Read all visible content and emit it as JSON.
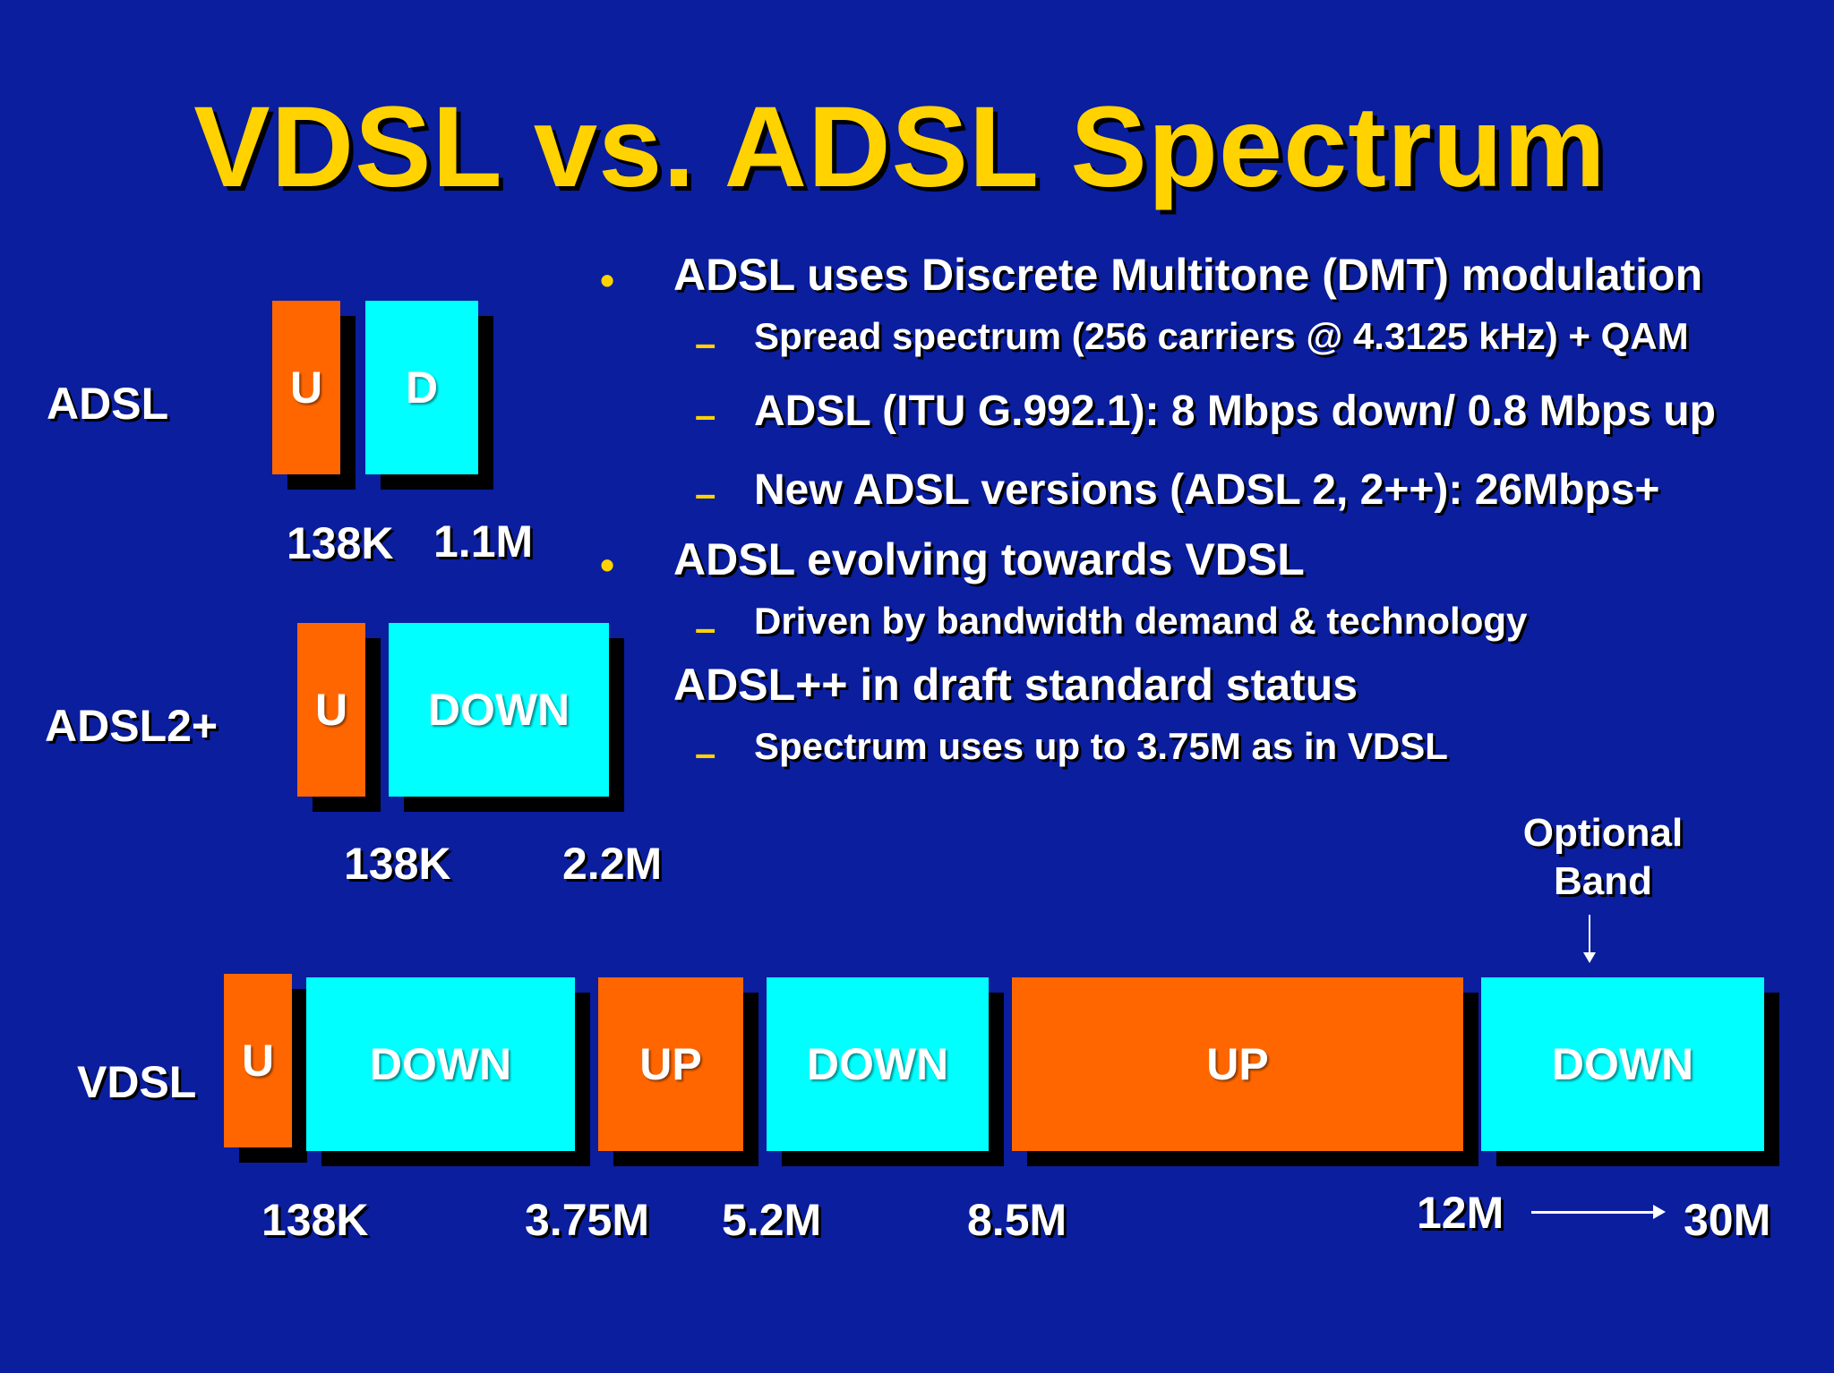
{
  "title": "VDSL vs. ADSL Spectrum",
  "colors": {
    "background": "#0a1e9e",
    "title": "#ffd200",
    "upstream": "#ff6600",
    "downstream": "#00ffff"
  },
  "bullets": [
    {
      "text": "ADSL uses Discrete Multitone (DMT) modulation",
      "marker": "•",
      "subs": [
        "Spread spectrum (256 carriers @ 4.3125 kHz) + QAM",
        "ADSL (ITU G.992.1): 8 Mbps down/ 0.8 Mbps up",
        "New ADSL versions (ADSL 2, 2++): 26Mbps+"
      ]
    },
    {
      "text": "ADSL evolving towards VDSL",
      "marker": "•",
      "subs": [
        "Driven by bandwidth demand & technology"
      ]
    },
    {
      "text": "ADSL++ in draft standard status",
      "marker": "",
      "subs": [
        "Spectrum uses up to 3.75M as in VDSL"
      ]
    }
  ],
  "dash": "–",
  "rows": {
    "adsl": {
      "label": "ADSL",
      "bands": [
        "U",
        "D"
      ],
      "freqs": [
        "138K",
        "1.1M"
      ]
    },
    "adsl2": {
      "label": "ADSL2+",
      "bands": [
        "U",
        "DOWN"
      ],
      "freqs": [
        "138K",
        "2.2M"
      ]
    },
    "vdsl": {
      "label": "VDSL",
      "bands": [
        "U",
        "DOWN",
        "UP",
        "DOWN",
        "UP",
        "DOWN"
      ],
      "freqs": [
        "138K",
        "3.75M",
        "5.2M",
        "8.5M",
        "12M",
        "30M"
      ]
    }
  },
  "optional_band": {
    "line1": "Optional",
    "line2": "Band",
    "arrow": "↓"
  }
}
